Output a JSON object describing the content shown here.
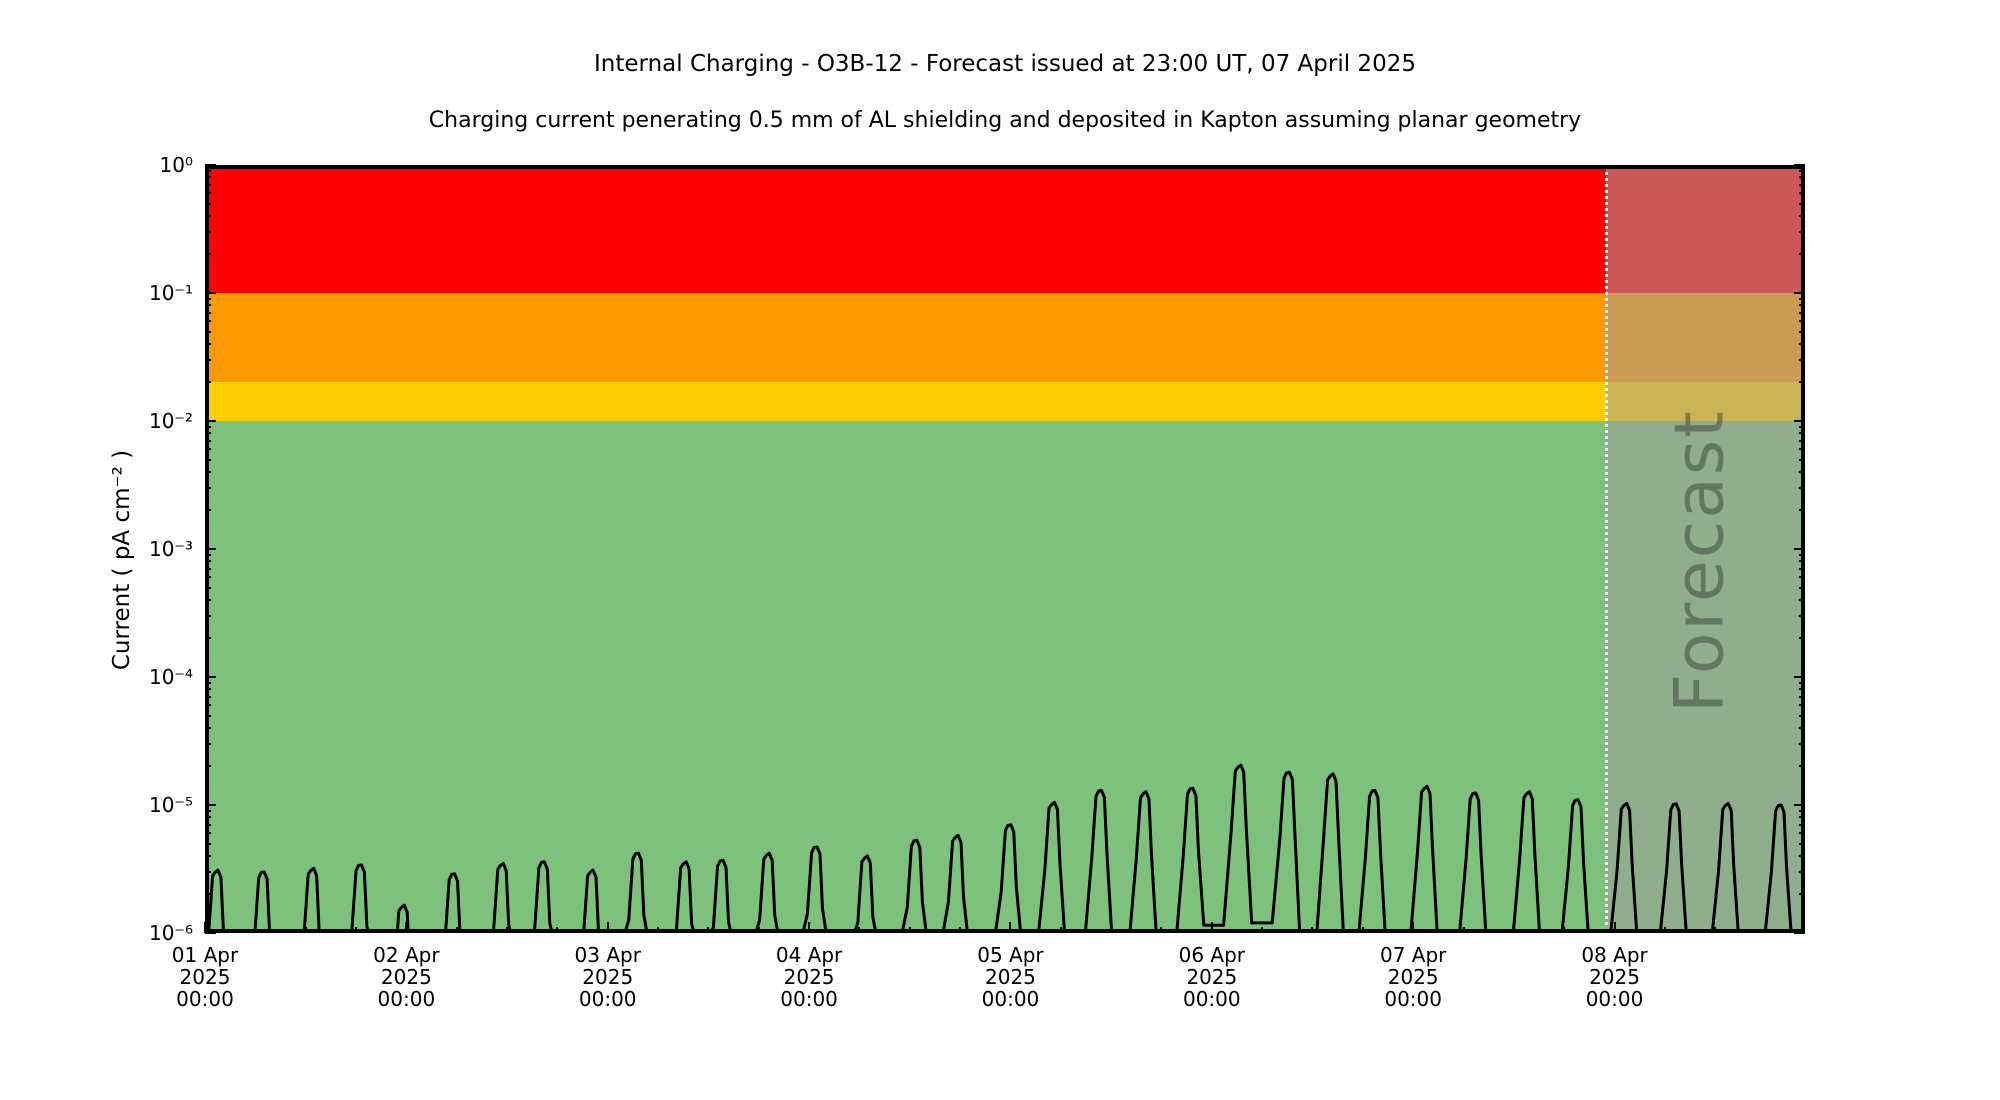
{
  "chart_data": {
    "type": "line",
    "title": "Internal Charging - O3B-12 - Forecast issued at 23:00 UT, 07 April 2025",
    "subtitle": "Charging current penerating 0.5 mm of AL shielding and deposited in Kapton assuming planar geometry",
    "xlabel": "",
    "ylabel": "Current ( pA cm⁻² )",
    "y_axis": {
      "scale": "log",
      "min": 1e-06,
      "max": 1,
      "unit": "pA cm⁻²",
      "ticks": [
        {
          "value": 1,
          "label": "10⁰"
        },
        {
          "value": 0.1,
          "label": "10⁻¹"
        },
        {
          "value": 0.01,
          "label": "10⁻²"
        },
        {
          "value": 0.001,
          "label": "10⁻³"
        },
        {
          "value": 0.0001,
          "label": "10⁻⁴"
        },
        {
          "value": 1e-05,
          "label": "10⁻⁵"
        },
        {
          "value": 1e-06,
          "label": "10⁻⁶"
        }
      ]
    },
    "x_axis": {
      "unit": "hours since 01 Apr 2025 00:00 UT",
      "min": 0,
      "max": 190.7,
      "minor_tick_hours": 6,
      "major_ticks": [
        {
          "hours": 0,
          "label_lines": [
            "01 Apr",
            "2025",
            "00:00"
          ]
        },
        {
          "hours": 24,
          "label_lines": [
            "02 Apr",
            "2025",
            "00:00"
          ]
        },
        {
          "hours": 48,
          "label_lines": [
            "03 Apr",
            "2025",
            "00:00"
          ]
        },
        {
          "hours": 72,
          "label_lines": [
            "04 Apr",
            "2025",
            "00:00"
          ]
        },
        {
          "hours": 96,
          "label_lines": [
            "05 Apr",
            "2025",
            "00:00"
          ]
        },
        {
          "hours": 120,
          "label_lines": [
            "06 Apr",
            "2025",
            "00:00"
          ]
        },
        {
          "hours": 144,
          "label_lines": [
            "07 Apr",
            "2025",
            "00:00"
          ]
        },
        {
          "hours": 168,
          "label_lines": [
            "08 Apr",
            "2025",
            "00:00"
          ]
        }
      ]
    },
    "bands": [
      {
        "name": "red",
        "color": "#ff0000",
        "range": [
          0.1,
          1
        ]
      },
      {
        "name": "orange",
        "color": "#ff9900",
        "range": [
          0.02,
          0.1
        ]
      },
      {
        "name": "yellow",
        "color": "#ffce00",
        "range": [
          0.01,
          0.02
        ]
      },
      {
        "name": "green",
        "color": "#7dc17d",
        "range": [
          1e-06,
          0.01
        ]
      }
    ],
    "forecast": {
      "label": "Forecast",
      "start_hours": 167,
      "divider_style": "dotted",
      "divider_color": "#ffffff",
      "overlay_color": "rgba(160,158,157,0.55)",
      "label_color": "rgba(60,72,60,0.55)"
    },
    "series": [
      {
        "name": "Internal charging current",
        "color": "#000000",
        "line_width": 3,
        "base_value": 8e-07,
        "peak_shape_hours": {
          "rise": 1.9,
          "top": 1.0,
          "fall": 1.45
        },
        "peaks": [
          {
            "t": 1.4,
            "v": 3.1e-06
          },
          {
            "t": 6.9,
            "v": 3e-06
          },
          {
            "t": 12.8,
            "v": 3.2e-06
          },
          {
            "t": 18.5,
            "v": 3.4e-06
          },
          {
            "t": 23.6,
            "v": 1.65e-06
          },
          {
            "t": 29.6,
            "v": 2.9e-06
          },
          {
            "t": 35.4,
            "v": 3.5e-06
          },
          {
            "t": 40.3,
            "v": 3.6e-06
          },
          {
            "t": 46.1,
            "v": 3.1e-06
          },
          {
            "t": 51.5,
            "v": 4.2e-06
          },
          {
            "t": 57.2,
            "v": 3.6e-06
          },
          {
            "t": 61.6,
            "v": 3.7e-06
          },
          {
            "t": 67.1,
            "v": 4.2e-06
          },
          {
            "t": 72.8,
            "v": 4.7e-06
          },
          {
            "t": 78.8,
            "v": 4e-06
          },
          {
            "t": 84.7,
            "v": 5.3e-06
          },
          {
            "t": 89.6,
            "v": 5.8e-06
          },
          {
            "t": 95.9,
            "v": 7e-06
          },
          {
            "t": 101.1,
            "v": 1.05e-05
          },
          {
            "t": 106.7,
            "v": 1.3e-05
          },
          {
            "t": 112.0,
            "v": 1.27e-05
          },
          {
            "t": 117.6,
            "v": 1.35e-05,
            "trough_next": 1.15e-06
          },
          {
            "t": 123.3,
            "v": 2.05e-05,
            "trough_next": 1.2e-06
          },
          {
            "t": 129.1,
            "v": 1.8e-05
          },
          {
            "t": 134.3,
            "v": 1.75e-05
          },
          {
            "t": 139.3,
            "v": 1.3e-05
          },
          {
            "t": 145.5,
            "v": 1.4e-05
          },
          {
            "t": 151.3,
            "v": 1.24e-05
          },
          {
            "t": 157.7,
            "v": 1.27e-05
          },
          {
            "t": 163.5,
            "v": 1.1e-05
          },
          {
            "t": 169.3,
            "v": 1.03e-05
          },
          {
            "t": 175.2,
            "v": 1.02e-05
          },
          {
            "t": 181.4,
            "v": 1.03e-05
          },
          {
            "t": 187.7,
            "v": 1e-05
          }
        ]
      }
    ]
  }
}
